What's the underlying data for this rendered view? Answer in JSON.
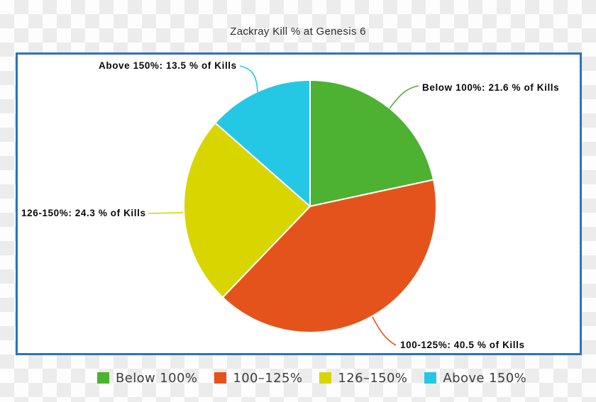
{
  "title": "Zackray Kill % at Genesis 6",
  "chart_data": {
    "type": "pie",
    "title": "Zackray Kill % at Genesis 6",
    "direction": "clockwise",
    "start_angle_deg": 0,
    "categories": [
      "Below 100%",
      "100-125%",
      "126-150%",
      "Above 150%"
    ],
    "values": [
      21.6,
      40.5,
      24.3,
      13.5
    ],
    "unit": "% of Kills",
    "colors": [
      "#4DB231",
      "#E5531C",
      "#D9D500",
      "#25C8E4"
    ],
    "separator_color": "#ffffff",
    "box_border_color": "#2B74B8",
    "slice_labels": [
      "Below 100%: 21.6 % of Kills",
      "100-125%: 40.5 % of Kills",
      "126-150%: 24.3 % of Kills",
      "Above 150%: 13.5 % of Kills"
    ],
    "legend": {
      "position": "bottom",
      "entries": [
        "Below 100%",
        "100–125%",
        "126–150%",
        "Above 150%"
      ]
    }
  }
}
